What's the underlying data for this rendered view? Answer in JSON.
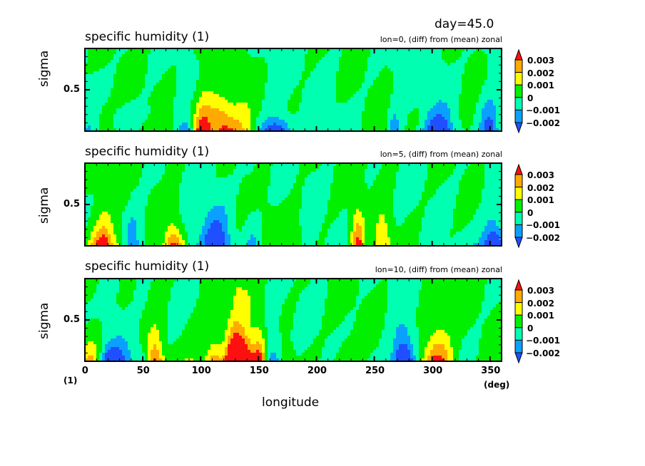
{
  "header": {
    "day_label": "day=45.0"
  },
  "chart_data": [
    {
      "type": "heatmap",
      "title": "specific humidity (1)",
      "subtitle": "lon=0, (diff) from (mean) zonal",
      "xlabel": "longitude",
      "ylabel": "sigma",
      "xlim": [
        0,
        360
      ],
      "ylim": [
        0,
        1
      ],
      "y_ticks": [
        "0.5"
      ],
      "seed": 11
    },
    {
      "type": "heatmap",
      "title": "specific humidity (1)",
      "subtitle": "lon=5, (diff) from (mean) zonal",
      "xlabel": "longitude",
      "ylabel": "sigma",
      "xlim": [
        0,
        360
      ],
      "ylim": [
        0,
        1
      ],
      "y_ticks": [
        "0.5"
      ],
      "seed": 23
    },
    {
      "type": "heatmap",
      "title": "specific humidity (1)",
      "subtitle": "lon=10, (diff) from (mean) zonal",
      "xlabel": "longitude",
      "ylabel": "sigma",
      "xlim": [
        0,
        360
      ],
      "ylim": [
        0,
        1
      ],
      "y_ticks": [
        "0.5"
      ],
      "seed": 37
    }
  ],
  "x_axis": {
    "ticks": [
      "0",
      "50",
      "100",
      "150",
      "200",
      "250",
      "300",
      "350"
    ],
    "tick_values": [
      0,
      50,
      100,
      150,
      200,
      250,
      300,
      350
    ],
    "label": "longitude",
    "unit": "(deg)",
    "y_unit": "(1)"
  },
  "colorbar": {
    "labels": [
      "0.003",
      "0.002",
      "0.001",
      "0",
      "−0.001",
      "−0.002"
    ],
    "levels": [
      -0.003,
      -0.002,
      -0.001,
      0,
      0.001,
      0.002,
      0.003
    ],
    "colors": [
      "#1f4fff",
      "#0aa0ff",
      "#00ffb0",
      "#00f000",
      "#ffff00",
      "#ffaa00",
      "#ff1010"
    ]
  }
}
